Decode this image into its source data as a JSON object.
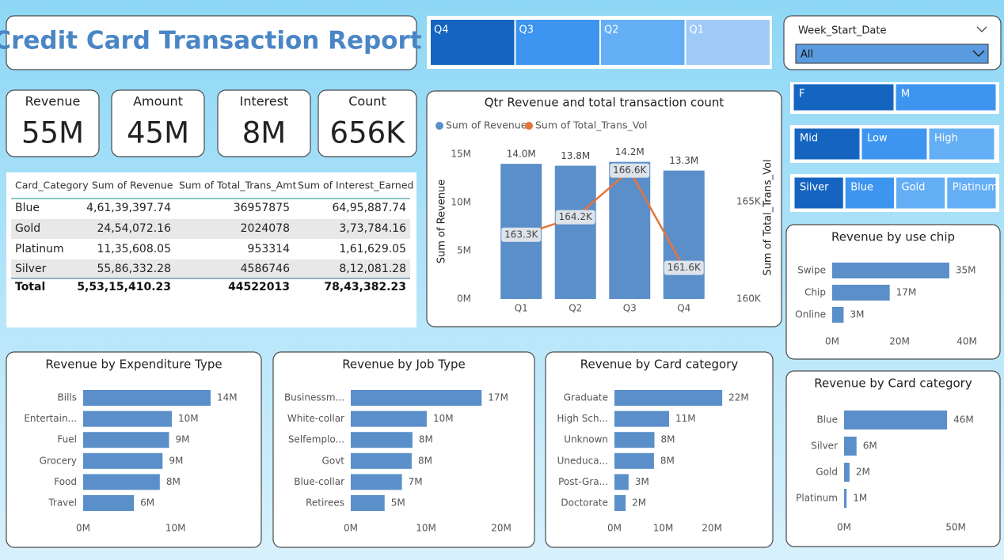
{
  "title": "Credit  Card  Transaction  Report",
  "slicers": {
    "quarter": [
      "Q4",
      "Q3",
      "Q2",
      "Q1"
    ],
    "gender": [
      "F",
      "M"
    ],
    "income": [
      "Mid",
      "Low",
      "High"
    ],
    "card": [
      "Silver",
      "Blue",
      "Gold",
      "Platinum"
    ]
  },
  "week_slicer": {
    "label": "Week_Start_Date",
    "value": "All"
  },
  "kpis": [
    {
      "label": "Revenue",
      "value": "55M"
    },
    {
      "label": "Amount",
      "value": "45M"
    },
    {
      "label": "Interest",
      "value": "8M"
    },
    {
      "label": "Count",
      "value": "656K"
    }
  ],
  "table": {
    "columns": [
      "Card_Category",
      "Sum of Revenue",
      "Sum of Total_Trans_Amt",
      "Sum of Interest_Earned"
    ],
    "rows": [
      [
        "Blue",
        "4,61,39,397.74",
        "36957875",
        "64,95,887.74"
      ],
      [
        "Gold",
        "24,54,072.16",
        "2024078",
        "3,73,784.16"
      ],
      [
        "Platinum",
        "11,35,608.05",
        "953314",
        "1,61,629.05"
      ],
      [
        "Silver",
        "55,86,332.28",
        "4586746",
        "8,12,081.28"
      ]
    ],
    "total": [
      "Total",
      "5,53,15,410.23",
      "44522013",
      "78,43,382.23"
    ]
  },
  "chart_data": [
    {
      "type": "combo",
      "title": "Qtr Revenue and total transaction count",
      "y_label": "Sum of Revenue",
      "y2_label": "Sum of Total_Trans_Vol",
      "categories": [
        "Q1",
        "Q2",
        "Q3",
        "Q4"
      ],
      "series": [
        {
          "name": "Sum of Revenue",
          "type": "bar",
          "color": "#5b8fc9",
          "values": [
            14000000,
            13800000,
            14200000,
            13300000
          ],
          "value_labels": [
            "14.0M",
            "13.8M",
            "14.2M",
            "13.3M"
          ]
        },
        {
          "name": "Sum of Total_Trans_Vol",
          "type": "line",
          "axis": "y2",
          "color": "#e8743b",
          "values": [
            163300,
            164200,
            166600,
            161600
          ],
          "value_labels": [
            "163.3K",
            "164.2K",
            "166.6K",
            "161.6K"
          ]
        }
      ],
      "ylim": [
        0,
        15400000
      ],
      "yticks": [
        {
          "value": 0,
          "label": "0M"
        },
        {
          "value": 5000000,
          "label": "5M"
        },
        {
          "value": 10000000,
          "label": "10M"
        },
        {
          "value": 15000000,
          "label": "15M"
        }
      ],
      "y2lim": [
        160000,
        167640
      ],
      "y2ticks": [
        {
          "value": 160000,
          "label": "160K"
        },
        {
          "value": 165000,
          "label": "165K"
        }
      ]
    },
    {
      "type": "hbar",
      "title": "Revenue by use chip",
      "categories": [
        "Swipe",
        "Chip",
        "Online"
      ],
      "values": [
        34800000,
        17100000,
        3400000
      ],
      "value_labels": [
        "35M",
        "17M",
        "3M"
      ],
      "color": "#5b8fc9",
      "xlim": [
        0,
        40000000
      ],
      "xticks": [
        {
          "value": 0,
          "label": "0M"
        },
        {
          "value": 20000000,
          "label": "20M"
        },
        {
          "value": 40000000,
          "label": "40M"
        }
      ]
    },
    {
      "type": "hbar",
      "title": "Revenue by Expenditure Type",
      "categories": [
        "Bills",
        "Entertain...",
        "Fuel",
        "Grocery",
        "Food",
        "Travel"
      ],
      "values": [
        13800000,
        9600000,
        9300000,
        8600000,
        8300000,
        5500000
      ],
      "value_labels": [
        "14M",
        "10M",
        "9M",
        "9M",
        "8M",
        "6M"
      ],
      "color": "#5b8fc9",
      "xlim": [
        0,
        15000000
      ],
      "xticks": [
        {
          "value": 0,
          "label": "0M"
        },
        {
          "value": 10000000,
          "label": "10M"
        }
      ]
    },
    {
      "type": "hbar",
      "title": "Revenue by Job Type",
      "categories": [
        "Businessm...",
        "White-collar",
        "Selfemplo...",
        "Govt",
        "Blue-collar",
        "Retirees"
      ],
      "values": [
        17400000,
        10100000,
        8200000,
        8100000,
        6800000,
        4500000
      ],
      "value_labels": [
        "17M",
        "10M",
        "8M",
        "8M",
        "7M",
        "5M"
      ],
      "color": "#5b8fc9",
      "xlim": [
        0,
        20000000
      ],
      "xticks": [
        {
          "value": 0,
          "label": "0M"
        },
        {
          "value": 10000000,
          "label": "10M"
        },
        {
          "value": 20000000,
          "label": "20M"
        }
      ]
    },
    {
      "type": "hbar",
      "title": "Revenue by Card category",
      "categories": [
        "Graduate",
        "High Sch...",
        "Unknown",
        "Uneduca...",
        "Post-Gra...",
        "Doctorate"
      ],
      "values": [
        22100000,
        11200000,
        8200000,
        8100000,
        2900000,
        2300000
      ],
      "value_labels": [
        "22M",
        "11M",
        "8M",
        "8M",
        "3M",
        "2M"
      ],
      "color": "#5b8fc9",
      "xlim": [
        0,
        25000000
      ],
      "xticks": [
        {
          "value": 0,
          "label": "0M"
        },
        {
          "value": 10000000,
          "label": "10M"
        },
        {
          "value": 20000000,
          "label": "20M"
        }
      ]
    },
    {
      "type": "hbar",
      "title": "Revenue by Card category",
      "categories": [
        "Blue",
        "Silver",
        "Gold",
        "Platinum"
      ],
      "values": [
        46139397.74,
        5586332.28,
        2454072.16,
        1135608.05
      ],
      "value_labels": [
        "46M",
        "6M",
        "2M",
        "1M"
      ],
      "color": "#5b8fc9",
      "xlim": [
        0,
        50000000
      ],
      "xticks": [
        {
          "value": 0,
          "label": "0M"
        },
        {
          "value": 50000000,
          "label": "50M"
        }
      ]
    }
  ]
}
